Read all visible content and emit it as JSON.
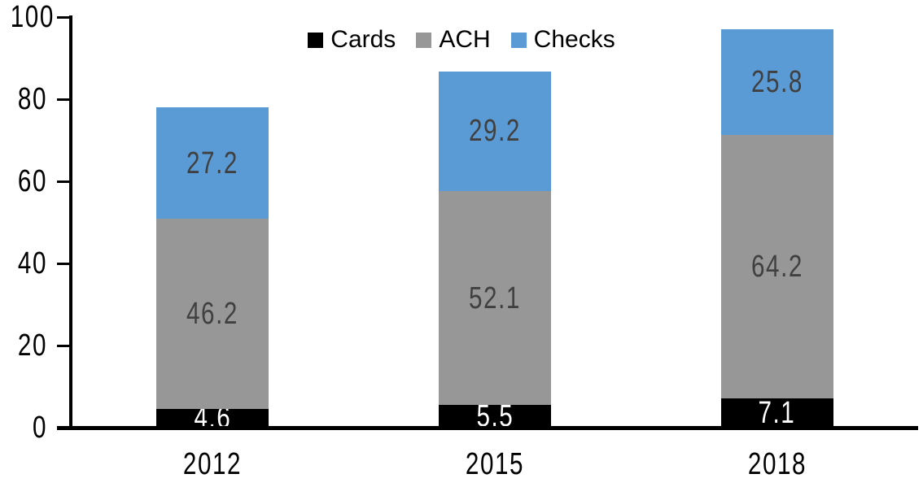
{
  "chart_data": {
    "type": "bar",
    "variant": "stacked-column",
    "title": "",
    "categories": [
      "2012",
      "2015",
      "2018"
    ],
    "series": [
      {
        "name": "Cards",
        "color": "#000000",
        "label_color": "#FFFFFF",
        "values": [
          4.6,
          5.5,
          7.1
        ],
        "labels": [
          "4.6",
          "5.5",
          "7.1"
        ]
      },
      {
        "name": "ACH",
        "color": "#979797",
        "label_color": "#404040",
        "values": [
          46.2,
          52.1,
          64.2
        ],
        "labels": [
          "46.2",
          "52.1",
          "64.2"
        ]
      },
      {
        "name": "Checks",
        "color": "#5B9BD5",
        "label_color": "#404040",
        "values": [
          27.2,
          29.2,
          25.8
        ],
        "labels": [
          "27.2",
          "29.2",
          "25.8"
        ]
      }
    ],
    "ylim": [
      0,
      100
    ],
    "y_ticks": [
      "0",
      "20",
      "40",
      "60",
      "80",
      "100"
    ],
    "grid": false,
    "legend_position": "top",
    "axis_color": "#000000",
    "background_color": "#FFFFFF"
  }
}
